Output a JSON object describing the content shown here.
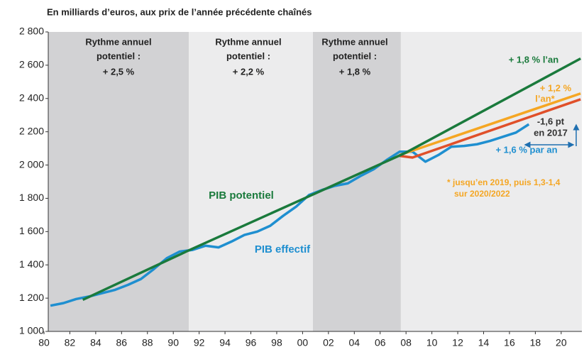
{
  "chart_data": {
    "type": "line",
    "title": "En milliards d’euros, aux prix de l’année précédente chaînés",
    "xlim": [
      1980.33,
      2021.6
    ],
    "ylim": [
      1000,
      2800
    ],
    "yticks": [
      {
        "value": 1000,
        "label": "1 000"
      },
      {
        "value": 1200,
        "label": "1 200"
      },
      {
        "value": 1400,
        "label": "1 400"
      },
      {
        "value": 1600,
        "label": "1 600"
      },
      {
        "value": 1800,
        "label": "1 800"
      },
      {
        "value": 2000,
        "label": "2 000"
      },
      {
        "value": 2200,
        "label": "2 200"
      },
      {
        "value": 2400,
        "label": "2 400"
      },
      {
        "value": 2600,
        "label": "2 600"
      },
      {
        "value": 2800,
        "label": "2 800"
      }
    ],
    "xticks": [
      {
        "value": 1980,
        "label": "80"
      },
      {
        "value": 1982,
        "label": "82"
      },
      {
        "value": 1984,
        "label": "84"
      },
      {
        "value": 1986,
        "label": "86"
      },
      {
        "value": 1988,
        "label": "88"
      },
      {
        "value": 1990,
        "label": "90"
      },
      {
        "value": 1992,
        "label": "92"
      },
      {
        "value": 1994,
        "label": "94"
      },
      {
        "value": 1996,
        "label": "96"
      },
      {
        "value": 1998,
        "label": "98"
      },
      {
        "value": 2000,
        "label": "00"
      },
      {
        "value": 2002,
        "label": "02"
      },
      {
        "value": 2004,
        "label": "04"
      },
      {
        "value": 2006,
        "label": "06"
      },
      {
        "value": 2008,
        "label": "08"
      },
      {
        "value": 2010,
        "label": "10"
      },
      {
        "value": 2012,
        "label": "12"
      },
      {
        "value": 2014,
        "label": "14"
      },
      {
        "value": 2016,
        "label": "16"
      },
      {
        "value": 2018,
        "label": "18"
      },
      {
        "value": 2020,
        "label": "20"
      }
    ],
    "periods": [
      {
        "from": 1980.33,
        "to": 1991.2,
        "color": "#d2d2d4"
      },
      {
        "from": 1991.2,
        "to": 2000.8,
        "color": "#ececed"
      },
      {
        "from": 2000.8,
        "to": 2007.6,
        "color": "#d2d2d4"
      },
      {
        "from": 2007.6,
        "to": 2021.6,
        "color": "#ececed"
      }
    ],
    "series": [
      {
        "color": "#1f8fd0",
        "x": [
          1980.5,
          1981.5,
          1982.5,
          1983.5,
          1984.5,
          1985.5,
          1986.5,
          1987.5,
          1988.5,
          1989.5,
          1990.5,
          1991.5,
          1992.5,
          1993.5,
          1994.5,
          1995.5,
          1996.5,
          1997.5,
          1998.5,
          1999.5,
          2000.5,
          2001.5,
          2002.5,
          2003.5,
          2004.5,
          2005.5,
          2006.5,
          2007.5,
          2008.5,
          2009.5,
          2010.5,
          2011.5,
          2012.5,
          2013.5,
          2014.5,
          2015.5,
          2016.5,
          2017.5
        ],
        "values": [
          1155,
          1170,
          1195,
          1210,
          1230,
          1250,
          1280,
          1315,
          1375,
          1440,
          1480,
          1490,
          1515,
          1505,
          1540,
          1580,
          1600,
          1635,
          1695,
          1750,
          1820,
          1850,
          1875,
          1890,
          1935,
          1975,
          2030,
          2080,
          2080,
          2020,
          2060,
          2110,
          2115,
          2125,
          2145,
          2170,
          2195,
          2245
        ]
      },
      {
        "color": "#f5a623",
        "x": [
          2007.5,
          2021.5
        ],
        "values": [
          2060,
          2430
        ]
      },
      {
        "color": "#e0502a",
        "x": [
          2007.5,
          2008.5,
          2021.5
        ],
        "values": [
          2055,
          2045,
          2395
        ]
      },
      {
        "color": "#1a7a3c",
        "x": [
          1983,
          1991,
          2001,
          2008,
          2021.5
        ],
        "values": [
          1190,
          1480,
          1830,
          2075,
          2640
        ]
      }
    ],
    "annotations": [
      {
        "text": "Rythme annuel",
        "color": "#222"
      },
      {
        "text": "potentiel :",
        "color": "#222"
      },
      {
        "text": "+ 2,5 %",
        "color": "#222"
      },
      {
        "text": "Rythme annuel",
        "color": "#222"
      },
      {
        "text": "potentiel :",
        "color": "#222"
      },
      {
        "text": "+ 2,2 %",
        "color": "#222"
      },
      {
        "text": "Rythme annuel",
        "color": "#222"
      },
      {
        "text": "potentiel :",
        "color": "#222"
      },
      {
        "text": "+ 1,8 %",
        "color": "#222"
      },
      {
        "text": "+ 1,8 % l’an",
        "color": "#1a7a3c"
      },
      {
        "text": "+ 1,2 %",
        "color": "#f5a623"
      },
      {
        "text": "l’an*",
        "color": "#f5a623"
      },
      {
        "text": "-1,6 pt",
        "color": "#333"
      },
      {
        "text": "en 2017",
        "color": "#333"
      },
      {
        "text": "+ 1,6 % par an",
        "color": "#1f8fd0"
      },
      {
        "text": "* jusqu’en 2019, puis 1,3-1,4",
        "color": "#f5a623"
      },
      {
        "text": "sur 2020/2022",
        "color": "#f5a623"
      },
      {
        "text": "PIB potentiel",
        "color": "#1a7a3c"
      },
      {
        "text": "PIB effectif",
        "color": "#1f8fd0"
      }
    ]
  }
}
